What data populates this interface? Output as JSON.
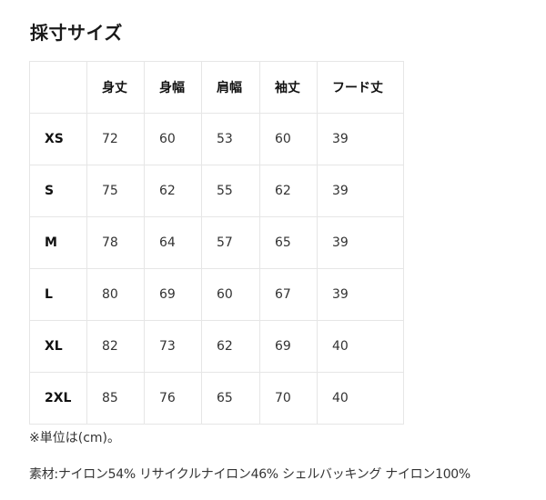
{
  "title": "採寸サイズ",
  "table": {
    "headers": [
      "",
      "身丈",
      "身幅",
      "肩幅",
      "袖丈",
      "フード丈"
    ],
    "rows": [
      [
        "XS",
        "72",
        "60",
        "53",
        "60",
        "39"
      ],
      [
        "S",
        "75",
        "62",
        "55",
        "62",
        "39"
      ],
      [
        "M",
        "78",
        "64",
        "57",
        "65",
        "39"
      ],
      [
        "L",
        "80",
        "69",
        "60",
        "67",
        "39"
      ],
      [
        "XL",
        "82",
        "73",
        "62",
        "69",
        "40"
      ],
      [
        "2XL",
        "85",
        "76",
        "65",
        "70",
        "40"
      ]
    ]
  },
  "note": "※単位は(cm)。",
  "material": "素材:ナイロン54% リサイクルナイロン46% シェルバッキング ナイロン100%"
}
